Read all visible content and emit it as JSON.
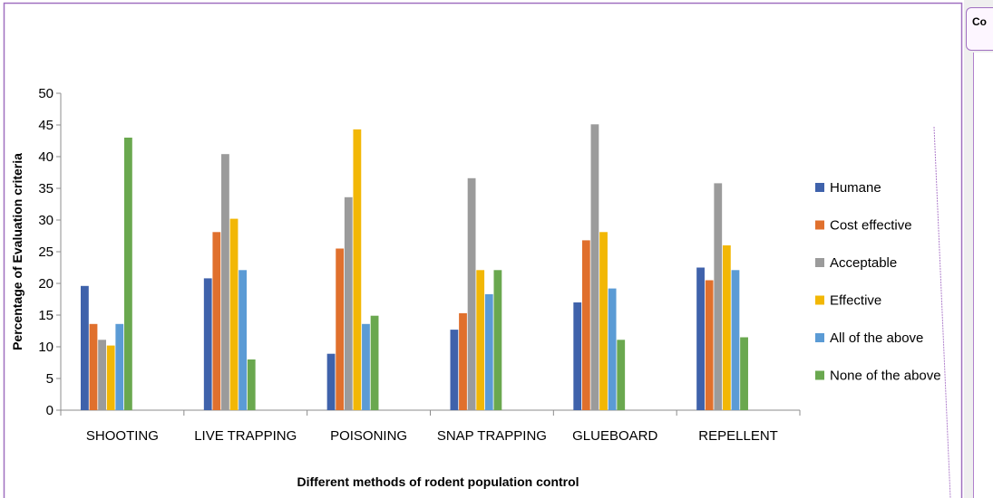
{
  "comment_tab": {
    "label": "Co"
  },
  "chart_data": {
    "type": "bar",
    "title": "",
    "xlabel": "Different methods of rodent population control",
    "ylabel": "Percentage of Evaluation criteria",
    "ylim": [
      0,
      50
    ],
    "yticks": [
      0,
      5,
      10,
      15,
      20,
      25,
      30,
      35,
      40,
      45,
      50
    ],
    "grid": false,
    "legend_position": "right",
    "categories": [
      "SHOOTING",
      "LIVE TRAPPING",
      "POISONING",
      "SNAP TRAPPING",
      "GLUEBOARD",
      "REPELLENT"
    ],
    "series": [
      {
        "name": "Humane",
        "color": "#3f62ab",
        "values": [
          19.6,
          20.8,
          8.9,
          12.7,
          17.0,
          22.5
        ]
      },
      {
        "name": "Cost effective",
        "color": "#e0702d",
        "values": [
          13.6,
          28.1,
          25.5,
          15.3,
          26.8,
          20.5
        ]
      },
      {
        "name": "Acceptable",
        "color": "#9b9b9b",
        "values": [
          11.1,
          40.4,
          33.6,
          36.6,
          45.1,
          35.8
        ]
      },
      {
        "name": "Effective",
        "color": "#f2b705",
        "values": [
          10.2,
          30.2,
          44.3,
          22.1,
          28.1,
          26.0
        ]
      },
      {
        "name": "All of the above",
        "color": "#5b9bd5",
        "values": [
          13.6,
          22.1,
          13.6,
          18.3,
          19.2,
          22.1
        ]
      },
      {
        "name": "None of the above",
        "color": "#6aa84f",
        "values": [
          43.0,
          8.0,
          14.9,
          22.1,
          11.1,
          11.5
        ]
      }
    ]
  }
}
